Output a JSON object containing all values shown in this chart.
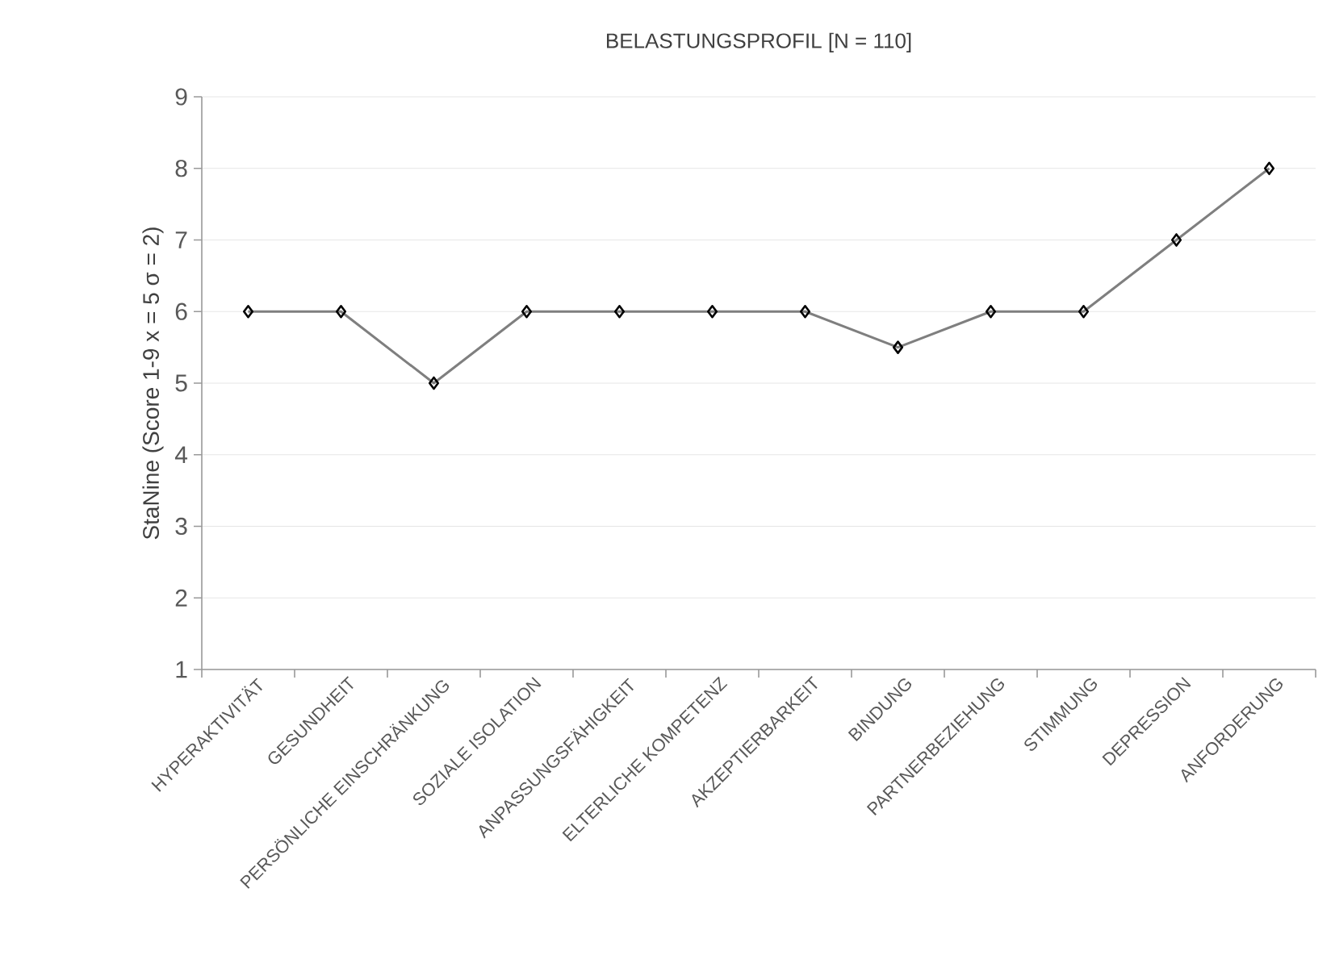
{
  "chart_data": {
    "type": "line",
    "title": "BELASTUNGSPROFIL [N = 110]",
    "ylabel": "StaNine (Score 1-9 x = 5 σ = 2)",
    "categories": [
      "HYPERAKTIVITÄT",
      "GESUNDHEIT",
      "PERSÖNLICHE EINSCHRÄNKUNG",
      "SOZIALE ISOLATION",
      "ANPASSUNGSFÄHIGKEIT",
      "ELTERLICHE KOMPETENZ",
      "AKZEPTIERBARKEIT",
      "BINDUNG",
      "PARTNERBEZIEHUNG",
      "STIMMUNG",
      "DEPRESSION",
      "ANFORDERUNG"
    ],
    "series": [
      {
        "color": "#7f7f7f",
        "values": [
          6,
          6,
          5,
          6,
          6,
          6,
          6,
          5.5,
          6,
          6,
          7,
          8
        ]
      }
    ],
    "ylim": [
      1,
      9
    ],
    "yticks": [
      1,
      2,
      3,
      4,
      5,
      6,
      7,
      8,
      9
    ],
    "grid": "y",
    "marker": "diamond",
    "line_style": "solid"
  }
}
